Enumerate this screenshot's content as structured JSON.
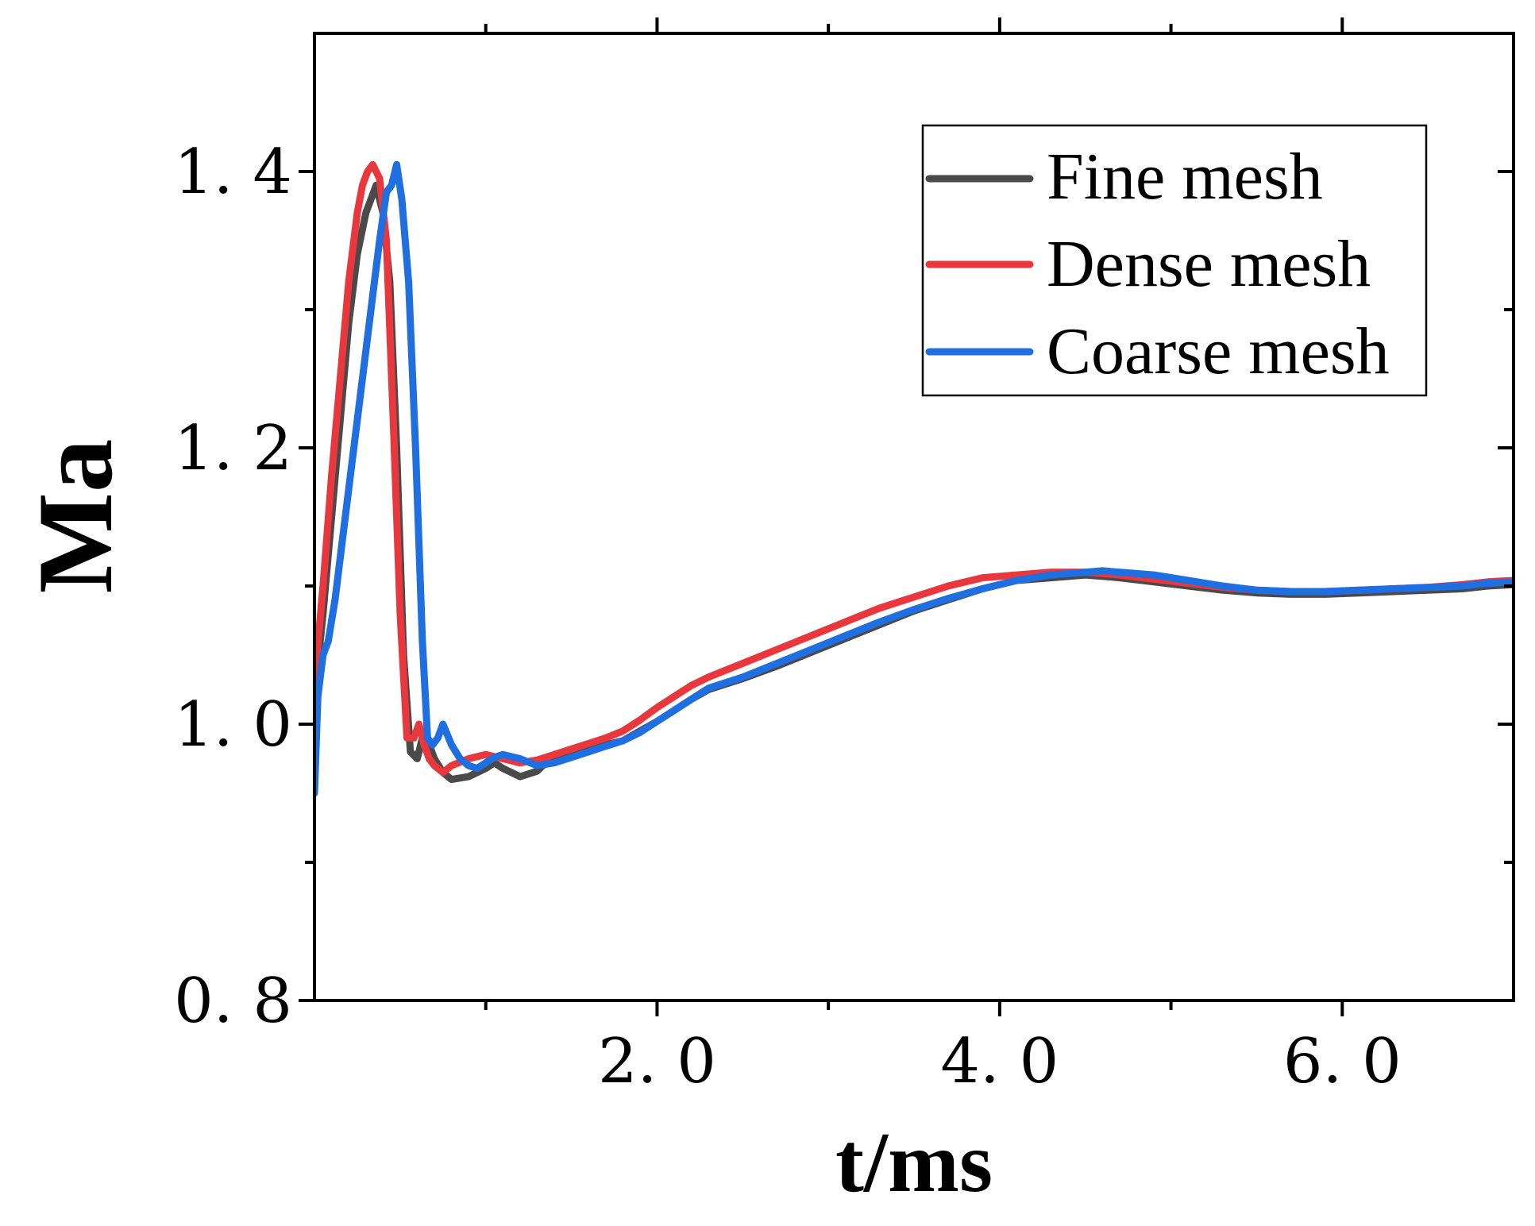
{
  "chart_data": {
    "type": "line",
    "title": "",
    "xlabel": "t/ms",
    "ylabel": "Ma",
    "xlim": [
      0,
      7.0
    ],
    "ylim": [
      0.8,
      1.5
    ],
    "x_major_ticks": [
      2.0,
      4.0,
      6.0
    ],
    "x_tick_labels": [
      "2. 0",
      "4. 0",
      "6. 0"
    ],
    "x_minor_ticks": [
      1.0,
      3.0,
      5.0
    ],
    "y_major_ticks": [
      0.8,
      1.0,
      1.2,
      1.4
    ],
    "y_tick_labels": [
      "0. 8",
      "1. 0",
      "1. 2",
      "1. 4"
    ],
    "y_minor_ticks": [
      0.9,
      1.1,
      1.3
    ],
    "grid": false,
    "legend_position": "top-right",
    "series": [
      {
        "name": "Fine mesh",
        "color": "#4a4a4a",
        "x": [
          0.0,
          0.05,
          0.1,
          0.15,
          0.2,
          0.25,
          0.3,
          0.33,
          0.36,
          0.4,
          0.44,
          0.48,
          0.52,
          0.56,
          0.6,
          0.63,
          0.67,
          0.7,
          0.75,
          0.8,
          0.9,
          1.0,
          1.05,
          1.1,
          1.2,
          1.3,
          1.35,
          1.4,
          1.5,
          1.6,
          1.7,
          1.8,
          1.9,
          2.0,
          2.1,
          2.2,
          2.3,
          2.5,
          2.7,
          2.9,
          3.1,
          3.3,
          3.5,
          3.7,
          3.9,
          4.1,
          4.3,
          4.5,
          4.6,
          4.7,
          4.9,
          5.1,
          5.3,
          5.5,
          5.7,
          5.9,
          6.1,
          6.3,
          6.5,
          6.7,
          6.85,
          7.0
        ],
        "y": [
          1.02,
          1.08,
          1.15,
          1.22,
          1.29,
          1.34,
          1.37,
          1.38,
          1.39,
          1.37,
          1.32,
          1.2,
          1.05,
          0.98,
          0.975,
          0.99,
          0.985,
          0.975,
          0.965,
          0.96,
          0.962,
          0.968,
          0.972,
          0.968,
          0.962,
          0.966,
          0.972,
          0.976,
          0.978,
          0.982,
          0.985,
          0.988,
          0.995,
          1.002,
          1.01,
          1.018,
          1.025,
          1.033,
          1.042,
          1.052,
          1.062,
          1.072,
          1.082,
          1.09,
          1.098,
          1.104,
          1.106,
          1.108,
          1.107,
          1.106,
          1.103,
          1.1,
          1.097,
          1.095,
          1.094,
          1.094,
          1.095,
          1.096,
          1.097,
          1.098,
          1.1,
          1.101
        ]
      },
      {
        "name": "Dense mesh",
        "color": "#e8383d",
        "x": [
          0.0,
          0.05,
          0.1,
          0.15,
          0.2,
          0.25,
          0.28,
          0.31,
          0.34,
          0.38,
          0.42,
          0.46,
          0.5,
          0.54,
          0.58,
          0.61,
          0.64,
          0.67,
          0.7,
          0.75,
          0.8,
          0.9,
          1.0,
          1.1,
          1.2,
          1.3,
          1.4,
          1.5,
          1.6,
          1.7,
          1.8,
          1.9,
          2.0,
          2.1,
          2.2,
          2.3,
          2.5,
          2.7,
          2.9,
          3.1,
          3.3,
          3.5,
          3.7,
          3.9,
          4.1,
          4.3,
          4.5,
          4.6,
          4.7,
          4.9,
          5.1,
          5.3,
          5.5,
          5.7,
          5.9,
          6.1,
          6.3,
          6.5,
          6.7,
          6.85,
          7.0
        ],
        "y": [
          1.03,
          1.1,
          1.18,
          1.25,
          1.32,
          1.37,
          1.39,
          1.4,
          1.405,
          1.395,
          1.35,
          1.22,
          1.08,
          0.99,
          0.99,
          1.0,
          0.985,
          0.975,
          0.97,
          0.965,
          0.97,
          0.975,
          0.978,
          0.975,
          0.972,
          0.974,
          0.978,
          0.982,
          0.986,
          0.99,
          0.995,
          1.003,
          1.012,
          1.02,
          1.028,
          1.034,
          1.044,
          1.054,
          1.064,
          1.074,
          1.084,
          1.092,
          1.1,
          1.106,
          1.108,
          1.11,
          1.11,
          1.109,
          1.108,
          1.105,
          1.102,
          1.099,
          1.097,
          1.096,
          1.096,
          1.097,
          1.098,
          1.099,
          1.101,
          1.103,
          1.104
        ]
      },
      {
        "name": "Coarse mesh",
        "color": "#1f6fe0",
        "x": [
          0.0,
          0.02,
          0.05,
          0.08,
          0.12,
          0.16,
          0.2,
          0.25,
          0.3,
          0.34,
          0.38,
          0.42,
          0.45,
          0.48,
          0.51,
          0.55,
          0.59,
          0.63,
          0.66,
          0.69,
          0.72,
          0.75,
          0.8,
          0.85,
          0.9,
          0.95,
          1.0,
          1.05,
          1.1,
          1.2,
          1.3,
          1.4,
          1.5,
          1.6,
          1.7,
          1.8,
          1.9,
          2.0,
          2.1,
          2.2,
          2.3,
          2.5,
          2.7,
          2.9,
          3.1,
          3.3,
          3.5,
          3.7,
          3.9,
          4.1,
          4.3,
          4.5,
          4.6,
          4.7,
          4.9,
          5.1,
          5.3,
          5.5,
          5.7,
          5.9,
          6.1,
          6.3,
          6.5,
          6.7,
          6.85,
          7.0
        ],
        "y": [
          0.95,
          1.02,
          1.05,
          1.06,
          1.09,
          1.13,
          1.17,
          1.22,
          1.27,
          1.31,
          1.35,
          1.385,
          1.39,
          1.405,
          1.38,
          1.32,
          1.2,
          1.06,
          0.99,
          0.985,
          0.99,
          1.0,
          0.985,
          0.975,
          0.97,
          0.968,
          0.972,
          0.976,
          0.978,
          0.975,
          0.97,
          0.972,
          0.976,
          0.98,
          0.984,
          0.988,
          0.994,
          1.002,
          1.01,
          1.018,
          1.026,
          1.034,
          1.044,
          1.054,
          1.064,
          1.074,
          1.083,
          1.091,
          1.098,
          1.104,
          1.108,
          1.11,
          1.111,
          1.11,
          1.108,
          1.104,
          1.1,
          1.097,
          1.096,
          1.096,
          1.097,
          1.098,
          1.099,
          1.1,
          1.102,
          1.103
        ]
      }
    ]
  }
}
